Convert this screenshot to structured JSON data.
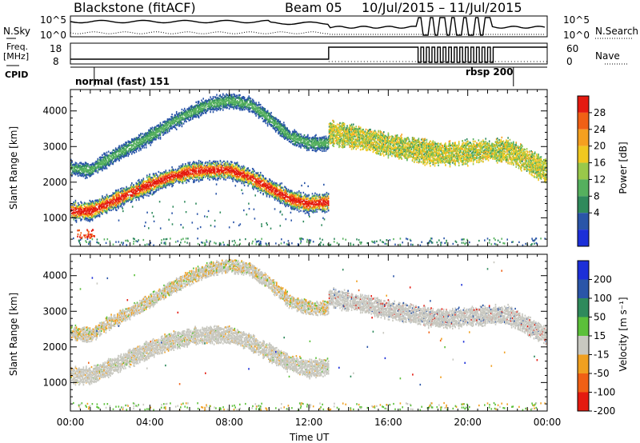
{
  "header": {
    "station": "Blackstone (fitACF)",
    "beam": "Beam 05",
    "date_range": "10/Jul/2015 – 11/Jul/2015"
  },
  "summary_panels": {
    "nsky_label": "N.Sky",
    "nsky_ticks": [
      "10^5",
      "10^0"
    ],
    "nsearch_label": "N.Search",
    "freq_label_1": "Freq.",
    "freq_label_2": "[MHz]",
    "freq_ticks": [
      "18",
      "8"
    ],
    "nave_ticks": [
      "60",
      "0"
    ],
    "nave_label": "Nave",
    "cpid_label": "CPID",
    "cpid_modes": [
      "normal (fast) 151",
      "rbsp 200"
    ]
  },
  "colors": {
    "power_scale": [
      "#1c2fd8",
      "#2a55a8",
      "#2f8a5c",
      "#55b05e",
      "#99c84a",
      "#f0c820",
      "#f5a020",
      "#f06015",
      "#e41a10"
    ],
    "velocity_scale": [
      "#1c2fd8",
      "#2a55a8",
      "#2f8a5c",
      "#5cc03a",
      "#c8c8c0",
      "#f0a020",
      "#f06015",
      "#e41a10"
    ]
  },
  "chart_data": [
    {
      "type": "heatmap",
      "panel": "power",
      "xlabel": "Time UT",
      "ylabel": "Slant Range [km]",
      "x_range": [
        "00:00",
        "24:00"
      ],
      "x_ticks": [
        "00:00",
        "04:00",
        "08:00",
        "12:00",
        "16:00",
        "20:00",
        "00:00"
      ],
      "ylim": [
        200,
        4600
      ],
      "y_ticks": [
        1000,
        2000,
        3000,
        4000
      ],
      "colorbar_label": "Power [dB]",
      "colorbar_ticks": [
        4,
        8,
        12,
        16,
        20,
        24,
        28
      ],
      "features": [
        {
          "name": "lower echo band",
          "t": [
            0,
            1,
            2,
            3,
            4,
            5,
            6,
            7,
            8,
            9,
            10,
            11,
            12,
            13
          ],
          "range_km": [
            1200,
            1200,
            1450,
            1700,
            1950,
            2150,
            2300,
            2350,
            2350,
            2150,
            1850,
            1550,
            1400,
            1450
          ],
          "power_db": 26
        },
        {
          "name": "upper echo band",
          "t": [
            0,
            1,
            2,
            3,
            4,
            5,
            6,
            7,
            8,
            9,
            10,
            11,
            12,
            13
          ],
          "range_km": [
            2400,
            2350,
            2700,
            3000,
            3300,
            3650,
            3950,
            4200,
            4300,
            4200,
            3800,
            3300,
            3100,
            3100
          ],
          "power_db": 12
        },
        {
          "name": "afternoon echoes",
          "t": [
            13,
            14,
            15,
            16,
            17,
            18,
            19,
            20,
            21,
            22,
            23,
            24
          ],
          "range_km": [
            3400,
            3300,
            3200,
            3050,
            2950,
            2850,
            2800,
            2850,
            2900,
            2900,
            2600,
            2300
          ],
          "power_db": 18
        }
      ]
    },
    {
      "type": "heatmap",
      "panel": "velocity",
      "xlabel": "Time UT",
      "ylabel": "Slant Range [km]",
      "x_range": [
        "00:00",
        "24:00"
      ],
      "x_ticks": [
        "00:00",
        "04:00",
        "08:00",
        "12:00",
        "16:00",
        "20:00",
        "00:00"
      ],
      "ylim": [
        200,
        4600
      ],
      "y_ticks": [
        1000,
        2000,
        3000,
        4000
      ],
      "colorbar_label": "Velocity [m s⁻¹]",
      "colorbar_ticks": [
        200,
        100,
        50,
        15,
        -15,
        -50,
        -100,
        -200
      ]
    }
  ]
}
